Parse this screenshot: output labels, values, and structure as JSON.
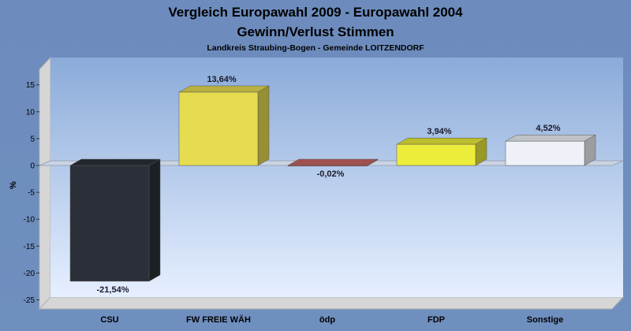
{
  "chart_data": {
    "type": "bar",
    "title": "Vergleich Europawahl 2009 - Europawahl 2004",
    "subtitle": "Gewinn/Verlust Stimmen",
    "subtitle2": "Landkreis Straubing-Bogen - Gemeinde LOITZENDORF",
    "ylabel": "%",
    "xlabel": "",
    "ylim": [
      -25,
      17
    ],
    "yticks": [
      -25,
      -20,
      -15,
      -10,
      -5,
      0,
      5,
      10,
      15
    ],
    "grid": false,
    "legend": "none",
    "categories": [
      "CSU",
      "FW FREIE WÄH",
      "ödp",
      "FDP",
      "Sonstige"
    ],
    "values": [
      -21.54,
      13.64,
      -0.02,
      3.94,
      4.52
    ],
    "value_labels": [
      "-21,54%",
      "13,64%",
      "-0,02%",
      "3,94%",
      "4,52%"
    ],
    "colors": [
      "#2b2f38",
      "#e6dc50",
      "#c86464",
      "#ecec3a",
      "#eef2f8"
    ]
  }
}
